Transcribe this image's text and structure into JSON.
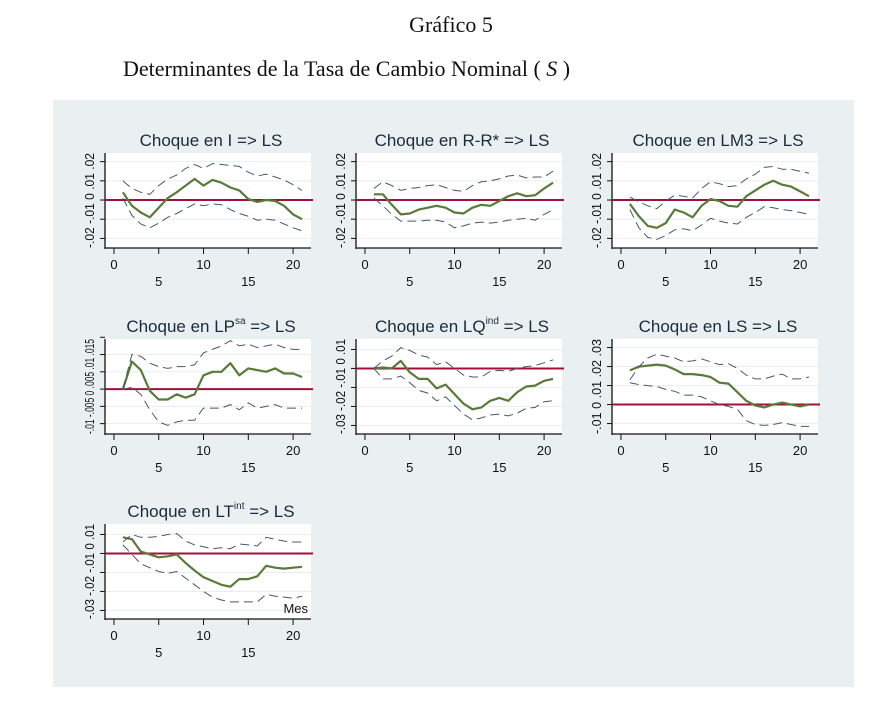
{
  "document": {
    "figure_label": "Gráfico 5",
    "subtitle_text": "Determinantes de la Tasa de Cambio Nominal (",
    "subtitle_var": "S",
    "subtitle_close": ")"
  },
  "colors": {
    "figure_background": "#eaf0f2",
    "plot_background": "#ffffff",
    "irf_line": "#5a7a3a",
    "zero_line": "#a0103a",
    "ci_line": "#4a5868",
    "grid": "#e6eef2"
  },
  "chart_data": [
    {
      "type": "line",
      "title": "Choque en I => LS",
      "title_base": "Choque en I",
      "title_sup": "",
      "title_tail": " => LS",
      "xlabel": "",
      "xticks": [
        0,
        5,
        10,
        15,
        20
      ],
      "xlim": [
        -1,
        22
      ],
      "yticks": [
        -0.02,
        -0.01,
        0,
        0.01,
        0.02
      ],
      "ytick_labels": [
        "-.02",
        "-.01",
        "0",
        ".01",
        ".02"
      ],
      "ylim": [
        -0.025,
        0.0245
      ],
      "x": [
        1,
        2,
        3,
        4,
        5,
        6,
        7,
        8,
        9,
        10,
        11,
        12,
        13,
        14,
        15,
        16,
        17,
        18,
        19,
        20,
        21
      ],
      "series": [
        {
          "name": "IRF",
          "values": [
            0.004,
            -0.003,
            -0.0065,
            -0.009,
            -0.004,
            0.001,
            0.004,
            0.0075,
            0.011,
            0.0075,
            0.0105,
            0.009,
            0.0065,
            0.005,
            0.0005,
            -0.001,
            0.0,
            -0.0005,
            -0.003,
            -0.0075,
            -0.01
          ]
        },
        {
          "name": "Upper",
          "values": [
            0.01,
            0.006,
            0.004,
            0.003,
            0.0075,
            0.011,
            0.013,
            0.0165,
            0.0185,
            0.0165,
            0.019,
            0.0185,
            0.018,
            0.0175,
            0.0145,
            0.0125,
            0.0135,
            0.012,
            0.0105,
            0.008,
            0.005
          ]
        },
        {
          "name": "Lower",
          "values": [
            0.001,
            -0.008,
            -0.0125,
            -0.0145,
            -0.012,
            -0.009,
            -0.007,
            -0.0045,
            -0.002,
            -0.003,
            -0.002,
            -0.0025,
            -0.005,
            -0.007,
            -0.0085,
            -0.0105,
            -0.01,
            -0.0105,
            -0.0125,
            -0.0145,
            -0.016
          ]
        }
      ]
    },
    {
      "type": "line",
      "title": "Choque en R-R* => LS",
      "title_base": "Choque en R-R*",
      "title_sup": "",
      "title_tail": " => LS",
      "xlabel": "",
      "xticks": [
        0,
        5,
        10,
        15,
        20
      ],
      "xlim": [
        -1,
        22
      ],
      "yticks": [
        -0.02,
        -0.01,
        0,
        0.01,
        0.02
      ],
      "ytick_labels": [
        "-.02",
        "-.01",
        "0",
        ".01",
        ".02"
      ],
      "ylim": [
        -0.025,
        0.0245
      ],
      "x": [
        1,
        2,
        3,
        4,
        5,
        6,
        7,
        8,
        9,
        10,
        11,
        12,
        13,
        14,
        15,
        16,
        17,
        18,
        19,
        20,
        21
      ],
      "series": [
        {
          "name": "IRF",
          "values": [
            0.003,
            0.003,
            -0.0025,
            -0.0075,
            -0.007,
            -0.005,
            -0.004,
            -0.003,
            -0.004,
            -0.0065,
            -0.007,
            -0.004,
            -0.0025,
            -0.003,
            -0.0005,
            0.002,
            0.0035,
            0.002,
            0.0025,
            0.006,
            0.009
          ]
        },
        {
          "name": "Upper",
          "values": [
            0.006,
            0.0095,
            0.0075,
            0.005,
            0.006,
            0.0065,
            0.0075,
            0.008,
            0.0065,
            0.005,
            0.0045,
            0.0075,
            0.0095,
            0.01,
            0.011,
            0.0125,
            0.013,
            0.0115,
            0.012,
            0.012,
            0.015
          ]
        },
        {
          "name": "Lower",
          "values": [
            0.001,
            -0.003,
            -0.0075,
            -0.011,
            -0.011,
            -0.011,
            -0.0105,
            -0.0105,
            -0.0115,
            -0.0145,
            -0.0135,
            -0.012,
            -0.0115,
            -0.012,
            -0.0115,
            -0.0105,
            -0.01,
            -0.0095,
            -0.0105,
            -0.0075,
            -0.005
          ]
        }
      ]
    },
    {
      "type": "line",
      "title": "Choque en LM3 => LS",
      "title_base": "Choque en LM3",
      "title_sup": "",
      "title_tail": " => LS",
      "xlabel": "",
      "xticks": [
        0,
        5,
        10,
        15,
        20
      ],
      "xlim": [
        -1,
        22
      ],
      "yticks": [
        -0.02,
        -0.01,
        0,
        0.01,
        0.02
      ],
      "ytick_labels": [
        "-.02",
        "-.01",
        "0",
        ".01",
        ".02"
      ],
      "ylim": [
        -0.025,
        0.0245
      ],
      "x": [
        1,
        2,
        3,
        4,
        5,
        6,
        7,
        8,
        9,
        10,
        11,
        12,
        13,
        14,
        15,
        16,
        17,
        18,
        19,
        20,
        21
      ],
      "series": [
        {
          "name": "IRF",
          "values": [
            -0.002,
            -0.0085,
            -0.0135,
            -0.0145,
            -0.012,
            -0.005,
            -0.0065,
            -0.009,
            -0.003,
            0.0005,
            -0.0005,
            -0.003,
            -0.0035,
            0.002,
            0.005,
            0.008,
            0.01,
            0.008,
            0.007,
            0.0045,
            0.002
          ]
        },
        {
          "name": "Upper",
          "values": [
            0.0015,
            -0.001,
            -0.003,
            -0.0045,
            -0.0005,
            0.0025,
            0.002,
            0.001,
            0.006,
            0.0095,
            0.0085,
            0.007,
            0.0075,
            0.011,
            0.0135,
            0.017,
            0.0175,
            0.016,
            0.016,
            0.015,
            0.014
          ]
        },
        {
          "name": "Lower",
          "values": [
            -0.005,
            -0.0145,
            -0.0195,
            -0.0205,
            -0.0185,
            -0.0155,
            -0.015,
            -0.016,
            -0.013,
            -0.0095,
            -0.011,
            -0.012,
            -0.0125,
            -0.009,
            -0.0065,
            -0.0035,
            -0.004,
            -0.005,
            -0.0055,
            -0.0065,
            -0.0075
          ]
        }
      ]
    },
    {
      "type": "line",
      "title": "Choque en LPsa => LS",
      "title_base": "Choque en LP",
      "title_sup": "sa",
      "title_tail": " => LS",
      "xlabel": "",
      "xticks": [
        0,
        5,
        10,
        15,
        20
      ],
      "xlim": [
        -1,
        22
      ],
      "yticks": [
        -0.01,
        -0.005,
        0,
        0.005,
        0.01,
        0.015
      ],
      "ytick_labels": [
        "-.01",
        "-.005",
        "0",
        ".005",
        ".01",
        ".015"
      ],
      "ylim": [
        -0.013,
        0.0145
      ],
      "x": [
        1,
        2,
        3,
        4,
        5,
        6,
        7,
        8,
        9,
        10,
        11,
        12,
        13,
        14,
        15,
        16,
        17,
        18,
        19,
        20,
        21
      ],
      "series": [
        {
          "name": "IRF",
          "values": [
            0.0,
            0.008,
            0.0055,
            -0.0005,
            -0.003,
            -0.003,
            -0.0015,
            -0.0025,
            -0.0015,
            0.004,
            0.005,
            0.005,
            0.0075,
            0.004,
            0.006,
            0.0055,
            0.005,
            0.006,
            0.0045,
            0.0045,
            0.0035
          ]
        },
        {
          "name": "Upper",
          "values": [
            0.0,
            0.01,
            0.0095,
            0.0075,
            0.0065,
            0.006,
            0.0065,
            0.0065,
            0.007,
            0.0105,
            0.0115,
            0.0125,
            0.014,
            0.0125,
            0.013,
            0.012,
            0.0125,
            0.013,
            0.012,
            0.0115,
            0.0115
          ]
        },
        {
          "name": "Lower",
          "values": [
            0.0,
            0.0005,
            -0.0015,
            -0.006,
            -0.0095,
            -0.0105,
            -0.0095,
            -0.009,
            -0.009,
            -0.0055,
            -0.0055,
            -0.0055,
            -0.0045,
            -0.006,
            -0.004,
            -0.0055,
            -0.005,
            -0.0045,
            -0.0055,
            -0.0055,
            -0.0055
          ]
        }
      ]
    },
    {
      "type": "line",
      "title": "Choque en LQind => LS",
      "title_base": "Choque en LQ",
      "title_sup": "ind",
      "title_tail": " => LS",
      "xlabel": "",
      "xticks": [
        0,
        5,
        10,
        15,
        20
      ],
      "xlim": [
        -1,
        22
      ],
      "yticks": [
        -0.03,
        -0.02,
        -0.01,
        0,
        0.01
      ],
      "ytick_labels": [
        "-.03",
        "-.02",
        "-.01",
        "0",
        ".01"
      ],
      "ylim": [
        -0.0345,
        0.0155
      ],
      "x": [
        1,
        2,
        3,
        4,
        5,
        6,
        7,
        8,
        9,
        10,
        11,
        12,
        13,
        14,
        15,
        16,
        17,
        18,
        19,
        20,
        21
      ],
      "series": [
        {
          "name": "IRF",
          "values": [
            0.0,
            0.0005,
            0.0,
            0.004,
            -0.002,
            -0.0055,
            -0.0055,
            -0.0105,
            -0.0085,
            -0.0135,
            -0.0185,
            -0.0215,
            -0.0205,
            -0.017,
            -0.0155,
            -0.017,
            -0.0125,
            -0.0095,
            -0.009,
            -0.0065,
            -0.0055
          ]
        },
        {
          "name": "Upper",
          "values": [
            0.0,
            0.004,
            0.0065,
            0.011,
            0.0095,
            0.007,
            0.006,
            0.002,
            0.0035,
            0.0,
            -0.0035,
            -0.0045,
            -0.0045,
            -0.0015,
            -0.001,
            -0.0015,
            0.0,
            0.001,
            0.0015,
            0.003,
            0.0045
          ]
        },
        {
          "name": "Lower",
          "values": [
            0.0,
            -0.0055,
            -0.0055,
            -0.004,
            -0.0075,
            -0.0115,
            -0.013,
            -0.017,
            -0.015,
            -0.0195,
            -0.024,
            -0.027,
            -0.026,
            -0.0245,
            -0.024,
            -0.025,
            -0.0235,
            -0.021,
            -0.0205,
            -0.0175,
            -0.017
          ]
        }
      ]
    },
    {
      "type": "line",
      "title": "Choque en LS => LS",
      "title_base": "Choque en LS",
      "title_sup": "",
      "title_tail": " => LS",
      "xlabel": "",
      "xticks": [
        0,
        5,
        10,
        15,
        20
      ],
      "xlim": [
        -1,
        22
      ],
      "yticks": [
        -0.01,
        0,
        0.01,
        0.02,
        0.03
      ],
      "ytick_labels": [
        "-.01",
        "0",
        ".01",
        ".02",
        ".03"
      ],
      "ylim": [
        -0.0155,
        0.0345
      ],
      "x": [
        1,
        2,
        3,
        4,
        5,
        6,
        7,
        8,
        9,
        10,
        11,
        12,
        13,
        14,
        15,
        16,
        17,
        18,
        19,
        20,
        21
      ],
      "series": [
        {
          "name": "IRF",
          "values": [
            0.018,
            0.02,
            0.0205,
            0.021,
            0.0205,
            0.0185,
            0.016,
            0.016,
            0.0155,
            0.0145,
            0.0115,
            0.011,
            0.0065,
            0.002,
            -0.0005,
            -0.0015,
            0.0,
            0.001,
            0.0,
            -0.001,
            0.0
          ]
        },
        {
          "name": "Upper",
          "values": [
            0.013,
            0.02,
            0.0245,
            0.0265,
            0.0255,
            0.0245,
            0.0225,
            0.023,
            0.024,
            0.0225,
            0.021,
            0.0215,
            0.019,
            0.0155,
            0.0135,
            0.0135,
            0.015,
            0.016,
            0.0135,
            0.0135,
            0.0145
          ]
        },
        {
          "name": "Lower",
          "values": [
            0.0115,
            0.0105,
            0.01,
            0.0095,
            0.008,
            0.007,
            0.005,
            0.005,
            0.004,
            0.002,
            0.0,
            -0.001,
            -0.0025,
            -0.0085,
            -0.0105,
            -0.011,
            -0.0105,
            -0.0095,
            -0.0105,
            -0.0115,
            -0.0115
          ]
        }
      ]
    },
    {
      "type": "line",
      "title": "Choque en LTint => LS",
      "title_base": "Choque en LT",
      "title_sup": "int",
      "title_tail": " => LS",
      "xlabel": "Mes",
      "xticks": [
        0,
        5,
        10,
        15,
        20
      ],
      "xlim": [
        -1,
        22
      ],
      "yticks": [
        -0.03,
        -0.02,
        -0.01,
        0,
        0.01
      ],
      "ytick_labels": [
        "-.03",
        "-.02",
        "-.01",
        "0",
        ".01"
      ],
      "ylim": [
        -0.0345,
        0.0155
      ],
      "x": [
        1,
        2,
        3,
        4,
        5,
        6,
        7,
        8,
        9,
        10,
        11,
        12,
        13,
        14,
        15,
        16,
        17,
        18,
        19,
        20,
        21
      ],
      "series": [
        {
          "name": "IRF",
          "values": [
            0.0085,
            0.0075,
            0.001,
            -0.0005,
            -0.002,
            -0.0015,
            -0.0005,
            -0.005,
            -0.009,
            -0.0125,
            -0.0145,
            -0.0165,
            -0.0175,
            -0.0135,
            -0.0135,
            -0.012,
            -0.0065,
            -0.0075,
            -0.008,
            -0.0075,
            -0.007
          ]
        },
        {
          "name": "Upper",
          "values": [
            0.006,
            0.01,
            0.0085,
            0.0085,
            0.009,
            0.01,
            0.0105,
            0.0065,
            0.0045,
            0.0035,
            0.0025,
            0.003,
            0.0025,
            0.005,
            0.0045,
            0.004,
            0.0085,
            0.0075,
            0.0065,
            0.006,
            0.006
          ]
        },
        {
          "name": "Lower",
          "values": [
            0.0045,
            -0.0005,
            -0.0055,
            -0.0075,
            -0.0095,
            -0.0105,
            -0.0095,
            -0.013,
            -0.0165,
            -0.02,
            -0.023,
            -0.0245,
            -0.0255,
            -0.0255,
            -0.0255,
            -0.0255,
            -0.0215,
            -0.0225,
            -0.023,
            -0.0235,
            -0.0225
          ]
        }
      ]
    }
  ]
}
